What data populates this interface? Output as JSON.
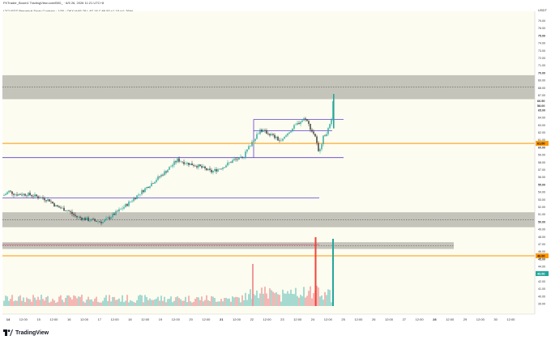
{
  "header": {
    "text": "FKTrader_Boom1 TradingView.com/B00_ · 6/5 26, 2026 11:21 UTC+8",
    "symbol_line": "LTCUSDT Perpetual Swap Contract · 1/30 · OKX  H:65.78  L:67.18  C:66.50  +1.15 (+1.76%)"
  },
  "footer": {
    "brand": "TradingView"
  },
  "axis": {
    "unit": "USDT",
    "price_labels": [
      "79.00",
      "76.00",
      "75.00",
      "74.00",
      "73.00",
      "72.00",
      "71.00",
      "70.00",
      "69.00",
      "68.00",
      "67.00",
      "66.00",
      "65.00",
      "64.00",
      "63.00",
      "62.00",
      "61.00",
      "60.00",
      "59.00",
      "58.00",
      "57.00",
      "56.00",
      "55.00",
      "54.00",
      "53.00",
      "52.00",
      "51.00",
      "50.00",
      "49.00",
      "48.00",
      "47.00",
      "46.00",
      "45.00",
      "44.00",
      "43.00",
      "42.00",
      "41.00",
      "40.00",
      "39.00"
    ],
    "time_labels": [
      "14",
      "12:00",
      "15",
      "12:00",
      "16",
      "12:00",
      "17",
      "12:00",
      "18",
      "12:00",
      "19",
      "12:00",
      "20",
      "12:00",
      "21",
      "12:00",
      "22",
      "12:00",
      "23",
      "12:00",
      "24",
      "12:00",
      "25",
      "12:00",
      "26",
      "12:00",
      "27",
      "12:00",
      "28",
      "12:00",
      "29",
      "12:00",
      "30",
      "12:00"
    ],
    "bold_time_labels": [
      "14",
      "21",
      "28"
    ]
  },
  "tags": {
    "last": "66.50",
    "last_sub": "58.00",
    "orange_upper": "61.00",
    "orange_lower": "46.00",
    "green": "43.50"
  },
  "colors": {
    "background": "#fdfcf0",
    "candle_up": "#26a69a",
    "candle_down": "#333333",
    "zone_fill": "#b2b2aa",
    "level_purple": "#5b3fd6",
    "level_orange": "#ff9800",
    "volume_up": "#80cbc4",
    "volume_down": "#ef9a9a",
    "spike_red": "#f44336",
    "spike_green": "#26a69a",
    "pink_line": "#e91e63"
  },
  "chart_data": {
    "type": "candlestick",
    "title": "LTCUSDT Perpetual Swap Contract",
    "ylabel": "USDT",
    "ylim": [
      38,
      80
    ],
    "series": [
      {
        "name": "price",
        "x": [
          "14",
          "15",
          "16",
          "17",
          "18",
          "19",
          "20",
          "21",
          "22",
          "23",
          "24"
        ],
        "values": [
          54.2,
          53.4,
          51.2,
          50.3,
          53.8,
          57.9,
          57.8,
          58.9,
          63.8,
          62.1,
          66.5
        ]
      }
    ],
    "zones": [
      [
        66.7,
        69.9
      ],
      [
        49.6,
        51.6
      ],
      [
        46.7,
        47.6
      ]
    ],
    "horizontal_levels": [
      64.0,
      62.5,
      60.8,
      58.9,
      53.5
    ]
  }
}
